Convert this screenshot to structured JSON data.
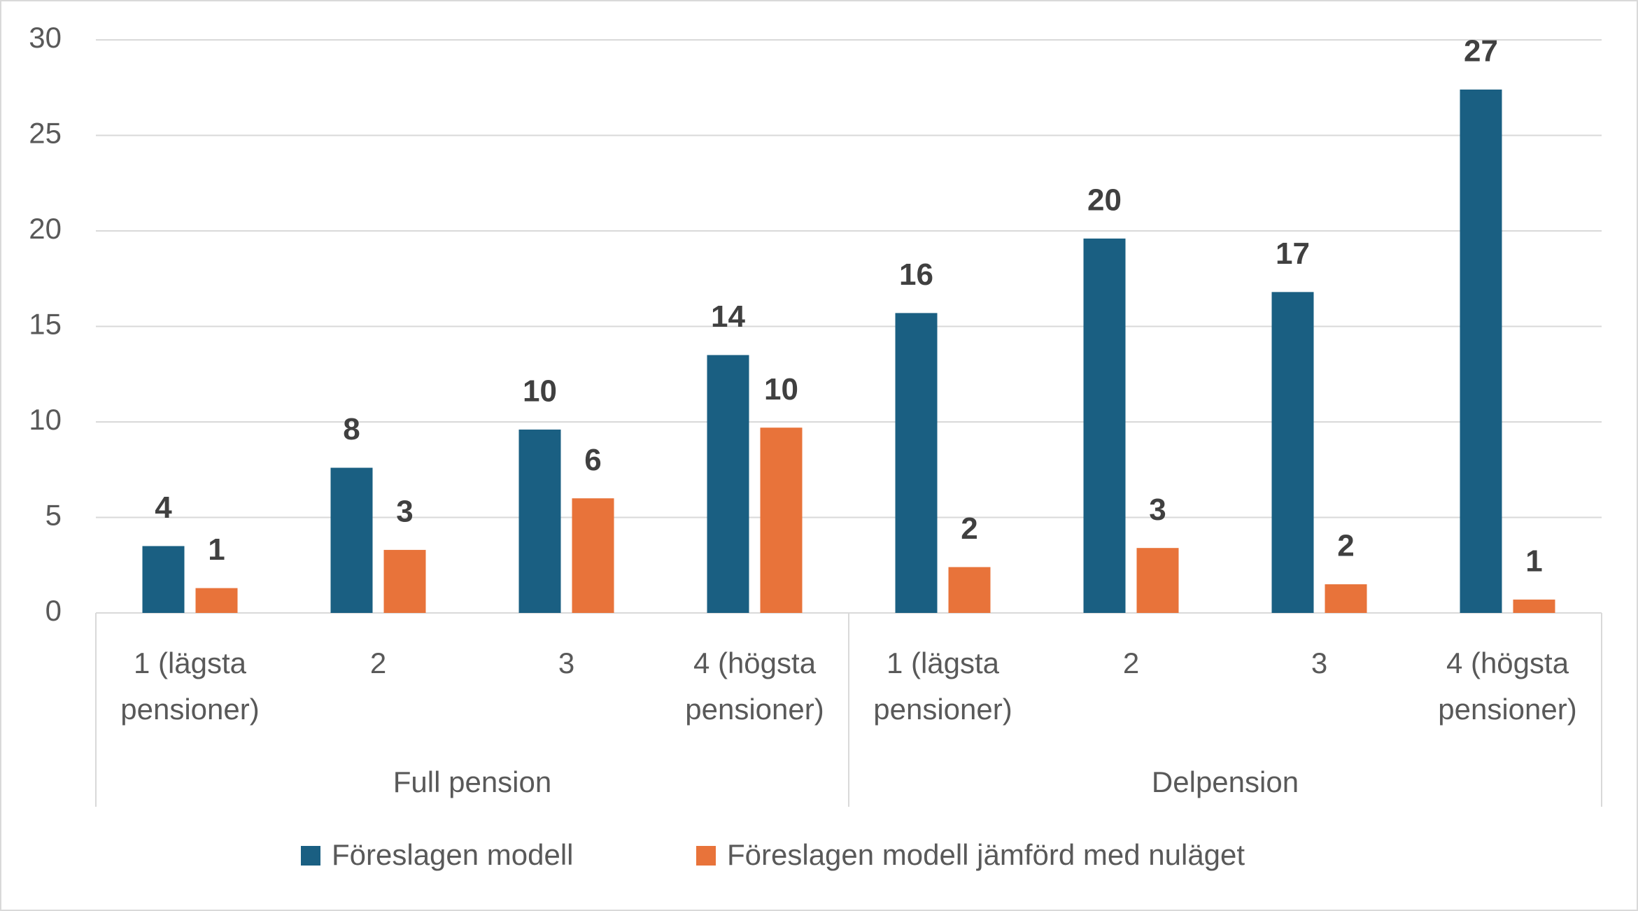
{
  "chart_data": {
    "type": "bar",
    "categories": [
      "1 (lägsta pensioner)",
      "2",
      "3",
      "4 (högsta pensioner)",
      "1 (lägsta pensioner)",
      "2",
      "3",
      "4 (högsta pensioner)"
    ],
    "groups": [
      "Full pension",
      "Delpension"
    ],
    "series": [
      {
        "name": "Föreslagen modell",
        "color": "#1a5f82",
        "values": [
          3.5,
          7.6,
          9.6,
          13.5,
          15.7,
          19.6,
          16.8,
          27.4
        ],
        "value_labels": [
          "4",
          "8",
          "10",
          "14",
          "16",
          "20",
          "17",
          "27"
        ]
      },
      {
        "name": "Föreslagen modell jämförd med nuläget",
        "color": "#e8733a",
        "values": [
          1.3,
          3.3,
          6.0,
          9.7,
          2.4,
          3.4,
          1.5,
          0.7
        ],
        "value_labels": [
          "1",
          "3",
          "6",
          "10",
          "2",
          "3",
          "2",
          "1"
        ]
      }
    ],
    "ylim": [
      0,
      30
    ],
    "yticks": [
      0,
      5,
      10,
      15,
      20,
      25,
      30
    ],
    "grid": true,
    "legend": "bottom"
  }
}
